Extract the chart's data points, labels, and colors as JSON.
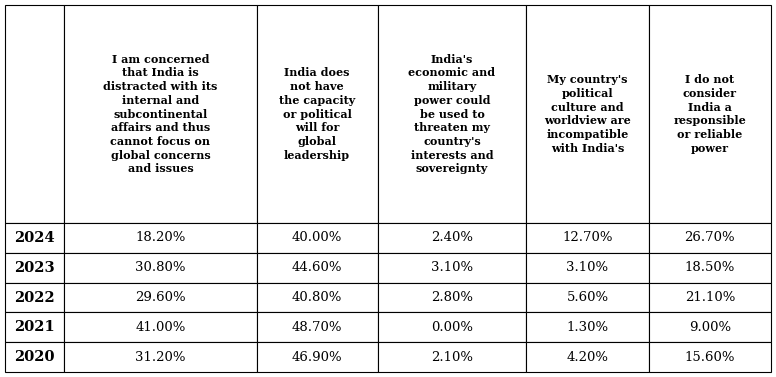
{
  "col_headers": [
    "I am concerned\nthat India is\ndistracted with its\ninternal and\nsubcontinental\naffairs and thus\ncannot focus on\nglobal concerns\nand issues",
    "India does\nnot have\nthe capacity\nor political\nwill for\nglobal\nleadership",
    "India's\neconomic and\nmilitary\npower could\nbe used to\nthreaten my\ncountry's\ninterests and\nsovereignty",
    "My country's\npolitical\nculture and\nworldview are\nincompatible\nwith India's",
    "I do not\nconsider\nIndia a\nresponsible\nor reliable\npower"
  ],
  "row_headers": [
    "2024",
    "2023",
    "2022",
    "2021",
    "2020"
  ],
  "data": [
    [
      "18.20%",
      "40.00%",
      "2.40%",
      "12.70%",
      "26.70%"
    ],
    [
      "30.80%",
      "44.60%",
      "3.10%",
      "3.10%",
      "18.50%"
    ],
    [
      "29.60%",
      "40.80%",
      "2.80%",
      "5.60%",
      "21.10%"
    ],
    [
      "41.00%",
      "48.70%",
      "0.00%",
      "1.30%",
      "9.00%"
    ],
    [
      "31.20%",
      "46.90%",
      "2.10%",
      "4.20%",
      "15.60%"
    ]
  ],
  "background_color": "#ffffff",
  "border_color": "#000000",
  "text_color": "#000000",
  "header_fontsize": 8.0,
  "data_fontsize": 9.5,
  "year_fontsize": 10.5
}
